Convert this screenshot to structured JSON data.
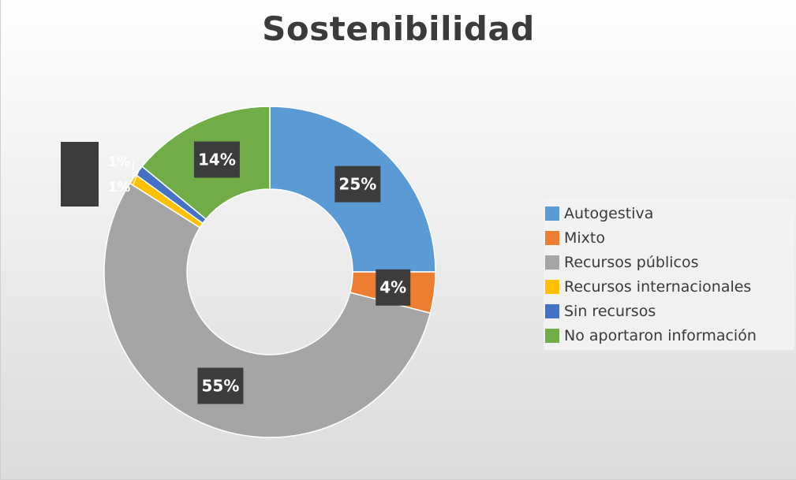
{
  "chart_data": {
    "type": "pie",
    "title": "Sostenibilidad",
    "legend_position": "right",
    "categories": [
      "Autogestiva",
      "Mixto",
      "Recursos públicos",
      "Recursos internacionales",
      "Sin recursos",
      "No aportaron información"
    ],
    "values": [
      25,
      4,
      55,
      1,
      1,
      14
    ],
    "data_labels": [
      "25%",
      "4%",
      "55%",
      "1%",
      "1%",
      "14%"
    ],
    "colors": [
      "#5b9bd5",
      "#ed7d31",
      "#a5a5a5",
      "#ffc000",
      "#4472c4",
      "#70ad47"
    ]
  }
}
